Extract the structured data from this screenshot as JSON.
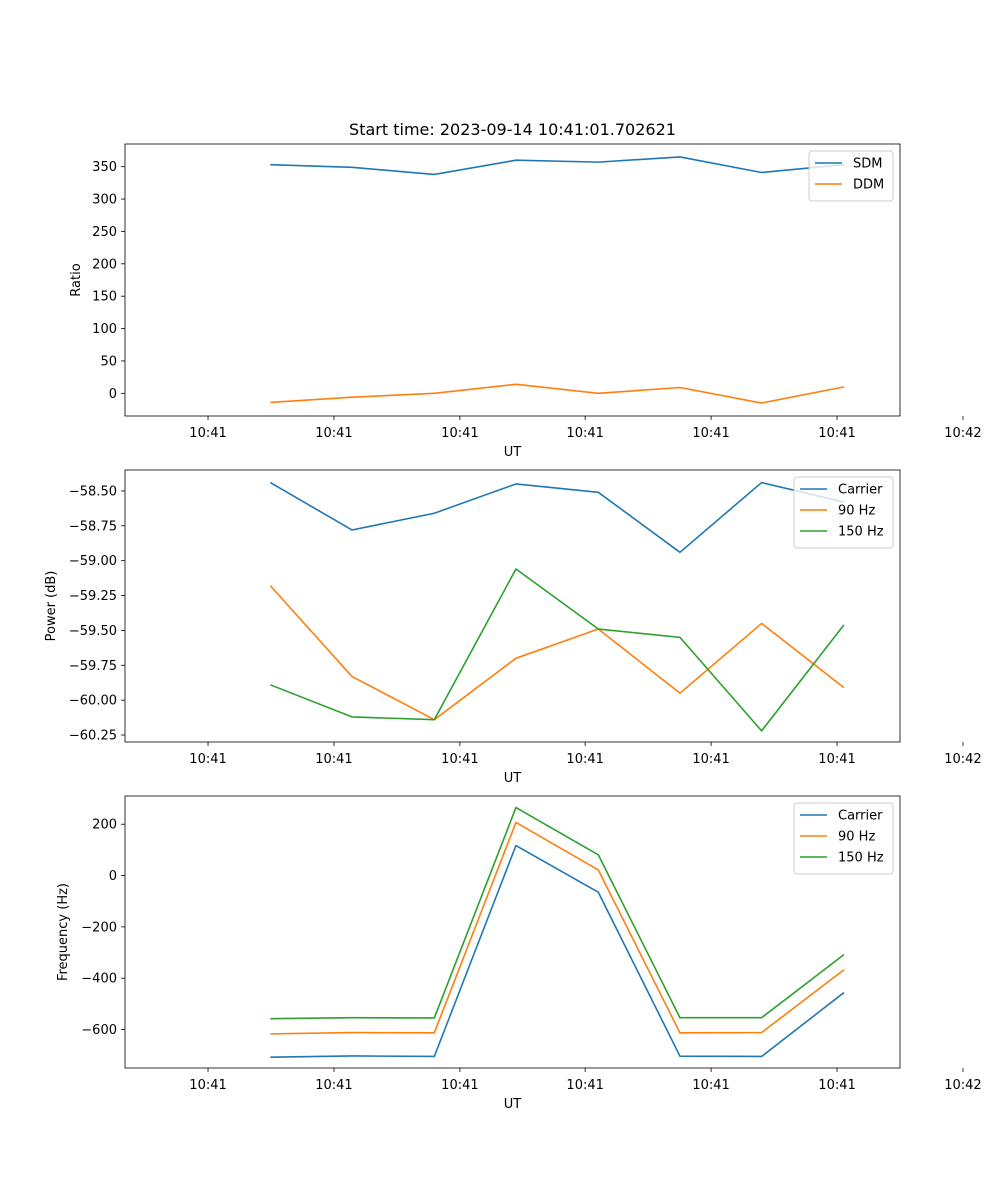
{
  "figure": {
    "title": "Start time: 2023-09-14 10:41:01.702621"
  },
  "chart_data": [
    {
      "type": "line",
      "title": "Start time: 2023-09-14 10:41:01.702621",
      "xlabel": "UT",
      "ylabel": "Ratio",
      "xlim": [
        -0.12,
        1.0
      ],
      "ylim": [
        -35,
        385
      ],
      "xticks": [
        0,
        0.182,
        0.364,
        0.545,
        0.727,
        0.909,
        1.091
      ],
      "xtick_labels": [
        "10:41",
        "10:41",
        "10:41",
        "10:41",
        "10:41",
        "10:41",
        "10:42"
      ],
      "yticks": [
        0,
        50,
        100,
        150,
        200,
        250,
        300,
        350
      ],
      "ytick_labels": [
        "0",
        "50",
        "100",
        "150",
        "200",
        "250",
        "300",
        "350"
      ],
      "legend": {
        "loc": "upper right"
      },
      "x": [
        0.09,
        0.208,
        0.327,
        0.445,
        0.564,
        0.682,
        0.8,
        0.919
      ],
      "series": [
        {
          "name": "SDM",
          "color": "#1f77b4",
          "values": [
            353,
            349,
            338,
            360,
            357,
            365,
            341,
            353
          ]
        },
        {
          "name": "DDM",
          "color": "#ff7f0e",
          "values": [
            -14,
            -6,
            0,
            14,
            0,
            9,
            -15,
            10
          ]
        }
      ]
    },
    {
      "type": "line",
      "xlabel": "UT",
      "ylabel": "Power (dB)",
      "xlim": [
        -0.12,
        1.0
      ],
      "ylim": [
        -60.3,
        -58.35
      ],
      "yticks": [
        -60.25,
        -60.0,
        -59.75,
        -59.5,
        -59.25,
        -59.0,
        -58.75,
        -58.5
      ],
      "ytick_labels": [
        "−60.25",
        "−60.00",
        "−59.75",
        "−59.50",
        "−59.25",
        "−59.00",
        "−58.75",
        "−58.50"
      ],
      "xticks": [
        0,
        0.182,
        0.364,
        0.545,
        0.727,
        0.909,
        1.091
      ],
      "xtick_labels": [
        "10:41",
        "10:41",
        "10:41",
        "10:41",
        "10:41",
        "10:41",
        "10:42"
      ],
      "legend": {
        "loc": "upper right"
      },
      "x": [
        0.09,
        0.208,
        0.327,
        0.445,
        0.564,
        0.682,
        0.8,
        0.919
      ],
      "series": [
        {
          "name": "Carrier",
          "color": "#1f77b4",
          "values": [
            -58.44,
            -58.78,
            -58.66,
            -58.45,
            -58.51,
            -58.94,
            -58.44,
            -58.58
          ]
        },
        {
          "name": "90 Hz",
          "color": "#ff7f0e",
          "values": [
            -59.18,
            -59.83,
            -60.14,
            -59.7,
            -59.49,
            -59.95,
            -59.45,
            -59.91
          ]
        },
        {
          "name": "150 Hz",
          "color": "#2ca02c",
          "values": [
            -59.89,
            -60.12,
            -60.14,
            -59.06,
            -59.49,
            -59.55,
            -60.22,
            -59.46
          ]
        }
      ]
    },
    {
      "type": "line",
      "xlabel": "UT",
      "ylabel": "Frequency (Hz)",
      "xlim": [
        -0.12,
        1.0
      ],
      "ylim": [
        -750,
        310
      ],
      "yticks": [
        -600,
        -400,
        -200,
        0,
        200
      ],
      "ytick_labels": [
        "−600",
        "−400",
        "−200",
        "0",
        "200"
      ],
      "xticks": [
        0,
        0.182,
        0.364,
        0.545,
        0.727,
        0.909,
        1.091
      ],
      "xtick_labels": [
        "10:41",
        "10:41",
        "10:41",
        "10:41",
        "10:41",
        "10:41",
        "10:42"
      ],
      "legend": {
        "loc": "upper right"
      },
      "x": [
        0.09,
        0.208,
        0.327,
        0.445,
        0.564,
        0.682,
        0.8,
        0.919
      ],
      "series": [
        {
          "name": "Carrier",
          "color": "#1f77b4",
          "values": [
            -708,
            -703,
            -705,
            117,
            -65,
            -704,
            -705,
            -456
          ]
        },
        {
          "name": "90 Hz",
          "color": "#ff7f0e",
          "values": [
            -617,
            -612,
            -613,
            207,
            22,
            -613,
            -612,
            -367
          ]
        },
        {
          "name": "150 Hz",
          "color": "#2ca02c",
          "values": [
            -558,
            -554,
            -555,
            265,
            81,
            -554,
            -554,
            -308
          ]
        }
      ]
    }
  ]
}
